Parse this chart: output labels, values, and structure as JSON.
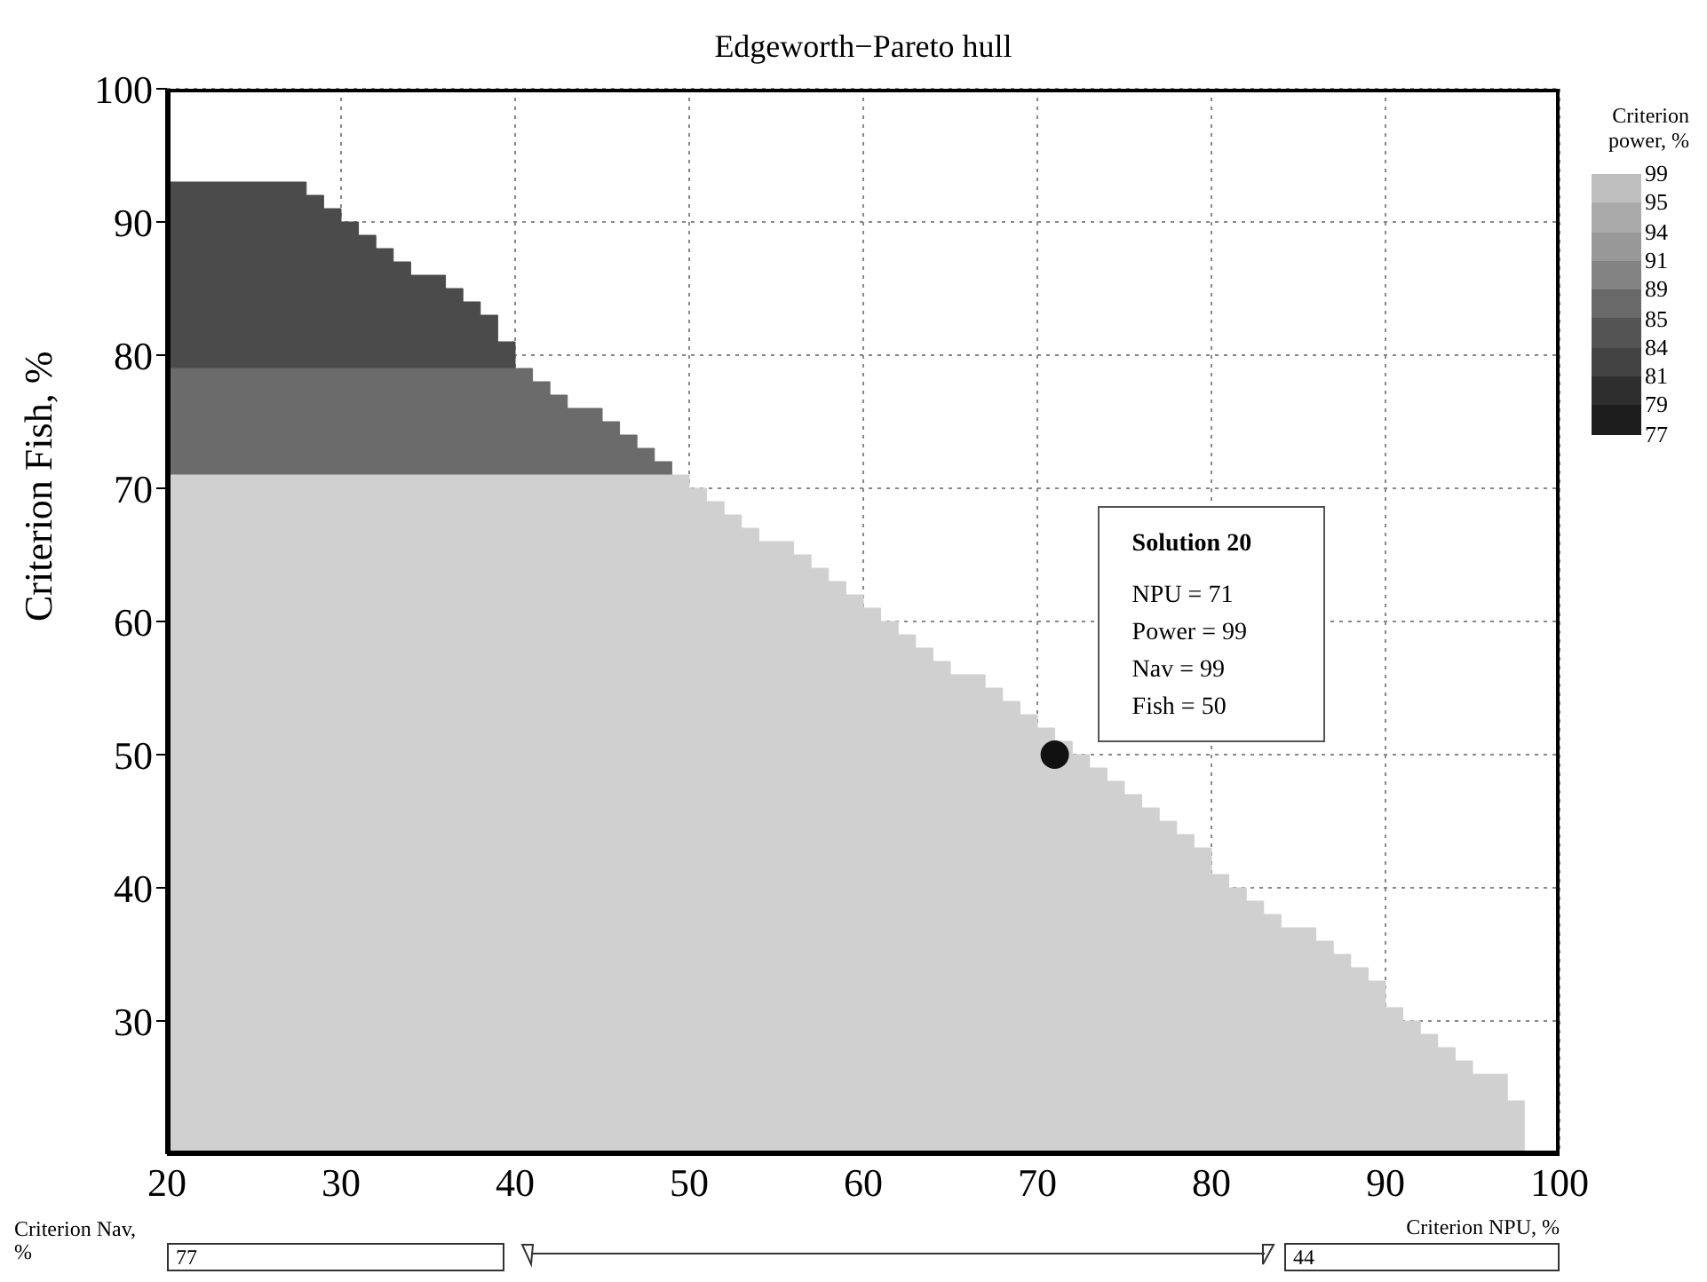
{
  "chart_data": {
    "type": "area",
    "title": "Edgeworth−Pareto hull",
    "ylabel": "Criterion Fish, %",
    "series": [
      {
        "color": "#4b4b4b",
        "x": [
          20,
          28,
          28,
          29,
          29,
          30,
          30,
          31,
          31,
          32,
          32,
          33,
          33,
          34,
          34,
          36,
          36,
          37,
          37,
          38,
          38,
          39,
          39,
          40,
          40
        ],
        "values": [
          93,
          93,
          92,
          92,
          91,
          91,
          90,
          90,
          89,
          89,
          88,
          88,
          87,
          87,
          86,
          86,
          85,
          85,
          84,
          84,
          83,
          83,
          81,
          81,
          79
        ]
      },
      {
        "color": "#6b6b6b",
        "x": [
          20,
          41,
          41,
          42,
          42,
          43,
          43,
          45,
          45,
          46,
          46,
          47,
          47,
          48,
          48,
          49,
          49
        ],
        "values": [
          79,
          79,
          78,
          78,
          77,
          77,
          76,
          76,
          75,
          75,
          74,
          74,
          73,
          73,
          72,
          72,
          71
        ]
      },
      {
        "color": "#d0d0d0",
        "x": [
          20,
          50,
          50,
          51,
          51,
          52,
          52,
          53,
          53,
          54,
          54,
          56,
          56,
          57,
          57,
          58,
          58,
          59,
          59,
          60,
          60,
          61,
          61,
          62,
          62,
          63,
          63,
          64,
          64,
          65,
          65,
          67,
          67,
          68,
          68,
          69,
          69,
          70,
          70,
          71,
          71,
          72,
          72,
          73,
          73,
          74,
          74,
          75,
          75,
          76,
          76,
          77,
          77,
          78,
          78,
          79,
          79,
          80,
          80,
          81,
          81,
          82,
          82,
          83,
          83,
          84,
          84,
          86,
          86,
          87,
          87,
          88,
          88,
          89,
          89,
          90,
          90,
          91,
          91,
          92,
          92,
          93,
          93,
          94,
          94,
          95,
          95,
          97,
          97,
          98
        ],
        "values": [
          71,
          71,
          70,
          70,
          69,
          69,
          68,
          68,
          67,
          67,
          66,
          66,
          65,
          65,
          64,
          64,
          63,
          63,
          62,
          62,
          61,
          61,
          60,
          60,
          59,
          59,
          58,
          58,
          57,
          57,
          56,
          56,
          55,
          55,
          54,
          54,
          53,
          53,
          52,
          52,
          51,
          51,
          50,
          50,
          49,
          49,
          48,
          48,
          47,
          47,
          46,
          46,
          45,
          45,
          44,
          44,
          43,
          43,
          41,
          41,
          40,
          40,
          39,
          39,
          38,
          38,
          37,
          37,
          36,
          36,
          35,
          35,
          34,
          34,
          33,
          33,
          31,
          31,
          30,
          30,
          29,
          29,
          28,
          28,
          27,
          27,
          26,
          26,
          24,
          24
        ]
      },
      {
        "type": "scatter",
        "color": "#111111",
        "x": [
          71
        ],
        "values": [
          50
        ]
      }
    ],
    "xlim": [
      20,
      100
    ],
    "xticks": [
      20,
      30,
      40,
      50,
      60,
      70,
      80,
      90,
      100
    ],
    "ylim": [
      20,
      100
    ],
    "yticks": [
      30,
      40,
      50,
      60,
      70,
      80,
      90,
      100
    ],
    "grid": true,
    "legend": false,
    "clabel": "Criterion power, %",
    "clim": [
      77,
      99
    ],
    "cticks": [
      99,
      95,
      94,
      91,
      89,
      85,
      84,
      81,
      79,
      77
    ],
    "annotations": [
      "Solution 20\nNPU = 71\nPower = 99\nNav = 99\nFish = 50",
      "Criterion Nav, %",
      "77",
      "Criterion NPU, %",
      "44"
    ]
  }
}
